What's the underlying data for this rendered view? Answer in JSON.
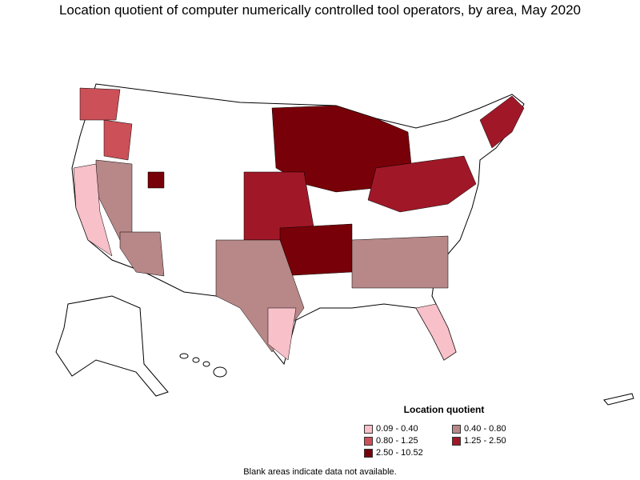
{
  "title": "Location quotient of computer numerically controlled tool operators, by area, May 2020",
  "legend": {
    "title": "Location quotient",
    "items": [
      {
        "label": "0.09 - 0.40",
        "color": "#f8c0c8"
      },
      {
        "label": "0.40 - 0.80",
        "color": "#b88888"
      },
      {
        "label": "0.80 - 1.25",
        "color": "#cc5058"
      },
      {
        "label": "1.25 - 2.50",
        "color": "#a01828"
      },
      {
        "label": "2.50 - 10.52",
        "color": "#780008"
      }
    ]
  },
  "footnote": "Blank areas indicate data not available.",
  "colors": {
    "no_data": "#ffffff",
    "outline": "#000000"
  }
}
